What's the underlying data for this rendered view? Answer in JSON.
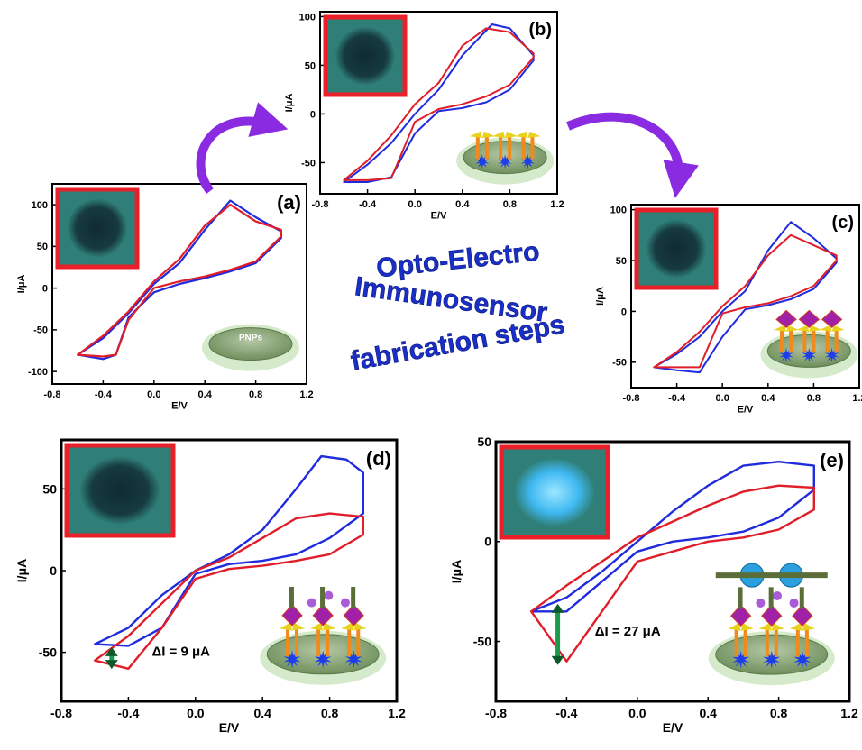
{
  "title_lines": [
    "Opto-Electro",
    "Immunosensor",
    "fabrication steps"
  ],
  "colors": {
    "series_blue": "#1f2bdc",
    "series_red": "#e01e2a",
    "arrow_purple": "#8a2be2",
    "title_blue": "#1a2fc8",
    "inset_border": "#e8202a",
    "inset_fill": "#2f7f78"
  },
  "chart_data": [
    {
      "id": "a",
      "type": "line",
      "panel_label": "(a)",
      "xlabel": "E/V",
      "ylabel": "I/μA",
      "xlim": [
        -0.8,
        1.2
      ],
      "ylim": [
        -115,
        125
      ],
      "xticks": [
        -0.8,
        -0.4,
        0.0,
        0.4,
        0.8,
        1.2
      ],
      "yticks": [
        -100,
        -50,
        0,
        50,
        100
      ],
      "inset_label": "PNPs",
      "inset_image": "dark-dot",
      "electrode_style": "bare",
      "series": [
        {
          "color": "#1f2bdc",
          "x": [
            -0.6,
            -0.4,
            -0.2,
            0.0,
            0.2,
            0.4,
            0.6,
            0.8,
            1.0,
            1.0,
            0.8,
            0.6,
            0.4,
            0.2,
            0.0,
            -0.2,
            -0.3,
            -0.4,
            -0.6
          ],
          "y": [
            -80,
            -60,
            -30,
            5,
            30,
            70,
            105,
            85,
            68,
            60,
            30,
            20,
            12,
            5,
            -5,
            -35,
            -80,
            -85,
            -80
          ]
        },
        {
          "color": "#e01e2a",
          "x": [
            -0.6,
            -0.4,
            -0.2,
            0.0,
            0.2,
            0.4,
            0.6,
            0.8,
            1.0,
            1.0,
            0.8,
            0.6,
            0.4,
            0.2,
            0.0,
            -0.2,
            -0.3,
            -0.4,
            -0.6
          ],
          "y": [
            -80,
            -57,
            -28,
            8,
            35,
            75,
            100,
            80,
            70,
            62,
            32,
            22,
            14,
            8,
            0,
            -38,
            -80,
            -82,
            -80
          ]
        }
      ]
    },
    {
      "id": "b",
      "type": "line",
      "panel_label": "(b)",
      "xlabel": "E/V",
      "ylabel": "I/μA",
      "xlim": [
        -0.8,
        1.2
      ],
      "ylim": [
        -82,
        105
      ],
      "xticks": [
        -0.8,
        -0.4,
        0.0,
        0.4,
        0.8,
        1.2
      ],
      "yticks": [
        -50,
        0,
        50,
        100
      ],
      "inset_image": "dark-dot",
      "electrode_style": "antibody",
      "series": [
        {
          "color": "#1f2bdc",
          "x": [
            -0.6,
            -0.4,
            -0.2,
            0.0,
            0.2,
            0.4,
            0.65,
            0.8,
            1.0,
            1.0,
            0.8,
            0.6,
            0.4,
            0.2,
            0.0,
            -0.2,
            -0.4,
            -0.6
          ],
          "y": [
            -70,
            -52,
            -30,
            0,
            25,
            60,
            92,
            88,
            60,
            55,
            25,
            12,
            6,
            3,
            -20,
            -65,
            -70,
            -70
          ]
        },
        {
          "color": "#e01e2a",
          "x": [
            -0.6,
            -0.4,
            -0.2,
            0.0,
            0.2,
            0.4,
            0.6,
            0.8,
            1.0,
            1.0,
            0.8,
            0.6,
            0.4,
            0.2,
            0.0,
            -0.2,
            -0.4,
            -0.6
          ],
          "y": [
            -68,
            -48,
            -22,
            10,
            32,
            70,
            88,
            84,
            62,
            58,
            30,
            18,
            10,
            5,
            -8,
            -66,
            -68,
            -68
          ]
        }
      ]
    },
    {
      "id": "c",
      "type": "line",
      "panel_label": "(c)",
      "xlabel": "E/V",
      "ylabel": "I/μA",
      "xlim": [
        -0.8,
        1.2
      ],
      "ylim": [
        -75,
        105
      ],
      "xticks": [
        -0.8,
        -0.4,
        0.0,
        0.4,
        0.8,
        1.2
      ],
      "yticks": [
        -50,
        0,
        50,
        100
      ],
      "inset_image": "dark-dot",
      "electrode_style": "antigen",
      "series": [
        {
          "color": "#1f2bdc",
          "x": [
            -0.6,
            -0.4,
            -0.2,
            0.0,
            0.2,
            0.4,
            0.6,
            0.8,
            1.0,
            1.0,
            0.8,
            0.6,
            0.4,
            0.2,
            0.0,
            -0.2,
            -0.4,
            -0.6
          ],
          "y": [
            -55,
            -42,
            -25,
            0,
            20,
            60,
            88,
            72,
            52,
            48,
            22,
            12,
            6,
            2,
            -25,
            -60,
            -58,
            -55
          ]
        },
        {
          "color": "#e01e2a",
          "x": [
            -0.6,
            -0.4,
            -0.2,
            0.0,
            0.2,
            0.4,
            0.6,
            0.8,
            1.0,
            1.0,
            0.8,
            0.6,
            0.4,
            0.2,
            0.0,
            -0.2,
            -0.4,
            -0.6
          ],
          "y": [
            -55,
            -40,
            -20,
            5,
            25,
            55,
            75,
            65,
            55,
            50,
            25,
            15,
            8,
            4,
            -2,
            -55,
            -55,
            -55
          ]
        }
      ]
    },
    {
      "id": "d",
      "type": "line",
      "panel_label": "(d)",
      "xlabel": "E/V",
      "ylabel": "I/μA",
      "xlim": [
        -0.8,
        1.2
      ],
      "ylim": [
        -80,
        80
      ],
      "xticks": [
        -0.8,
        -0.4,
        0.0,
        0.4,
        0.8,
        1.2
      ],
      "yticks": [
        -50,
        0,
        50
      ],
      "annotation": "ΔI = 9 μA",
      "inset_image": "dark-dot",
      "electrode_style": "antigen-sample",
      "delta_marker": {
        "x": -0.5,
        "y_top": -49,
        "y_bottom": -58
      },
      "series": [
        {
          "color": "#1f2bdc",
          "x": [
            -0.6,
            -0.4,
            -0.2,
            0.0,
            0.2,
            0.4,
            0.6,
            0.75,
            0.9,
            1.0,
            1.0,
            0.8,
            0.6,
            0.4,
            0.2,
            0.0,
            -0.2,
            -0.4,
            -0.6
          ],
          "y": [
            -45,
            -35,
            -15,
            0,
            10,
            25,
            50,
            70,
            68,
            60,
            35,
            20,
            10,
            6,
            4,
            -2,
            -35,
            -46,
            -45
          ]
        },
        {
          "color": "#e01e2a",
          "x": [
            -0.6,
            -0.4,
            -0.2,
            0.0,
            0.2,
            0.4,
            0.6,
            0.8,
            1.0,
            1.0,
            0.8,
            0.6,
            0.4,
            0.2,
            0.0,
            -0.2,
            -0.4,
            -0.6
          ],
          "y": [
            -55,
            -40,
            -20,
            0,
            8,
            20,
            32,
            35,
            33,
            22,
            10,
            6,
            3,
            1,
            -5,
            -35,
            -60,
            -55
          ]
        }
      ]
    },
    {
      "id": "e",
      "type": "line",
      "panel_label": "(e)",
      "xlabel": "E/V",
      "ylabel": "I/μA",
      "xlim": [
        -0.8,
        1.2
      ],
      "ylim": [
        -80,
        50
      ],
      "xticks": [
        -0.8,
        -0.4,
        0.0,
        0.4,
        0.8,
        1.2
      ],
      "yticks": [
        -50,
        0,
        50
      ],
      "annotation": "ΔI = 27 μA",
      "inset_image": "bright-dot",
      "electrode_style": "sandwich",
      "delta_marker": {
        "x": -0.45,
        "y_top": -33,
        "y_bottom": -60
      },
      "series": [
        {
          "color": "#1f2bdc",
          "x": [
            -0.6,
            -0.4,
            -0.2,
            0.0,
            0.2,
            0.4,
            0.6,
            0.8,
            1.0,
            1.0,
            0.8,
            0.6,
            0.4,
            0.2,
            0.0,
            -0.2,
            -0.4,
            -0.6
          ],
          "y": [
            -35,
            -28,
            -15,
            0,
            15,
            28,
            38,
            40,
            38,
            26,
            12,
            5,
            2,
            0,
            -5,
            -20,
            -35,
            -35
          ]
        },
        {
          "color": "#e01e2a",
          "x": [
            -0.6,
            -0.4,
            -0.2,
            0.0,
            0.2,
            0.4,
            0.6,
            0.8,
            1.0,
            1.0,
            0.8,
            0.6,
            0.4,
            0.2,
            0.0,
            -0.2,
            -0.4,
            -0.6
          ],
          "y": [
            -35,
            -22,
            -10,
            2,
            10,
            18,
            25,
            28,
            27,
            16,
            6,
            2,
            0,
            -5,
            -10,
            -35,
            -60,
            -35
          ]
        }
      ]
    }
  ]
}
